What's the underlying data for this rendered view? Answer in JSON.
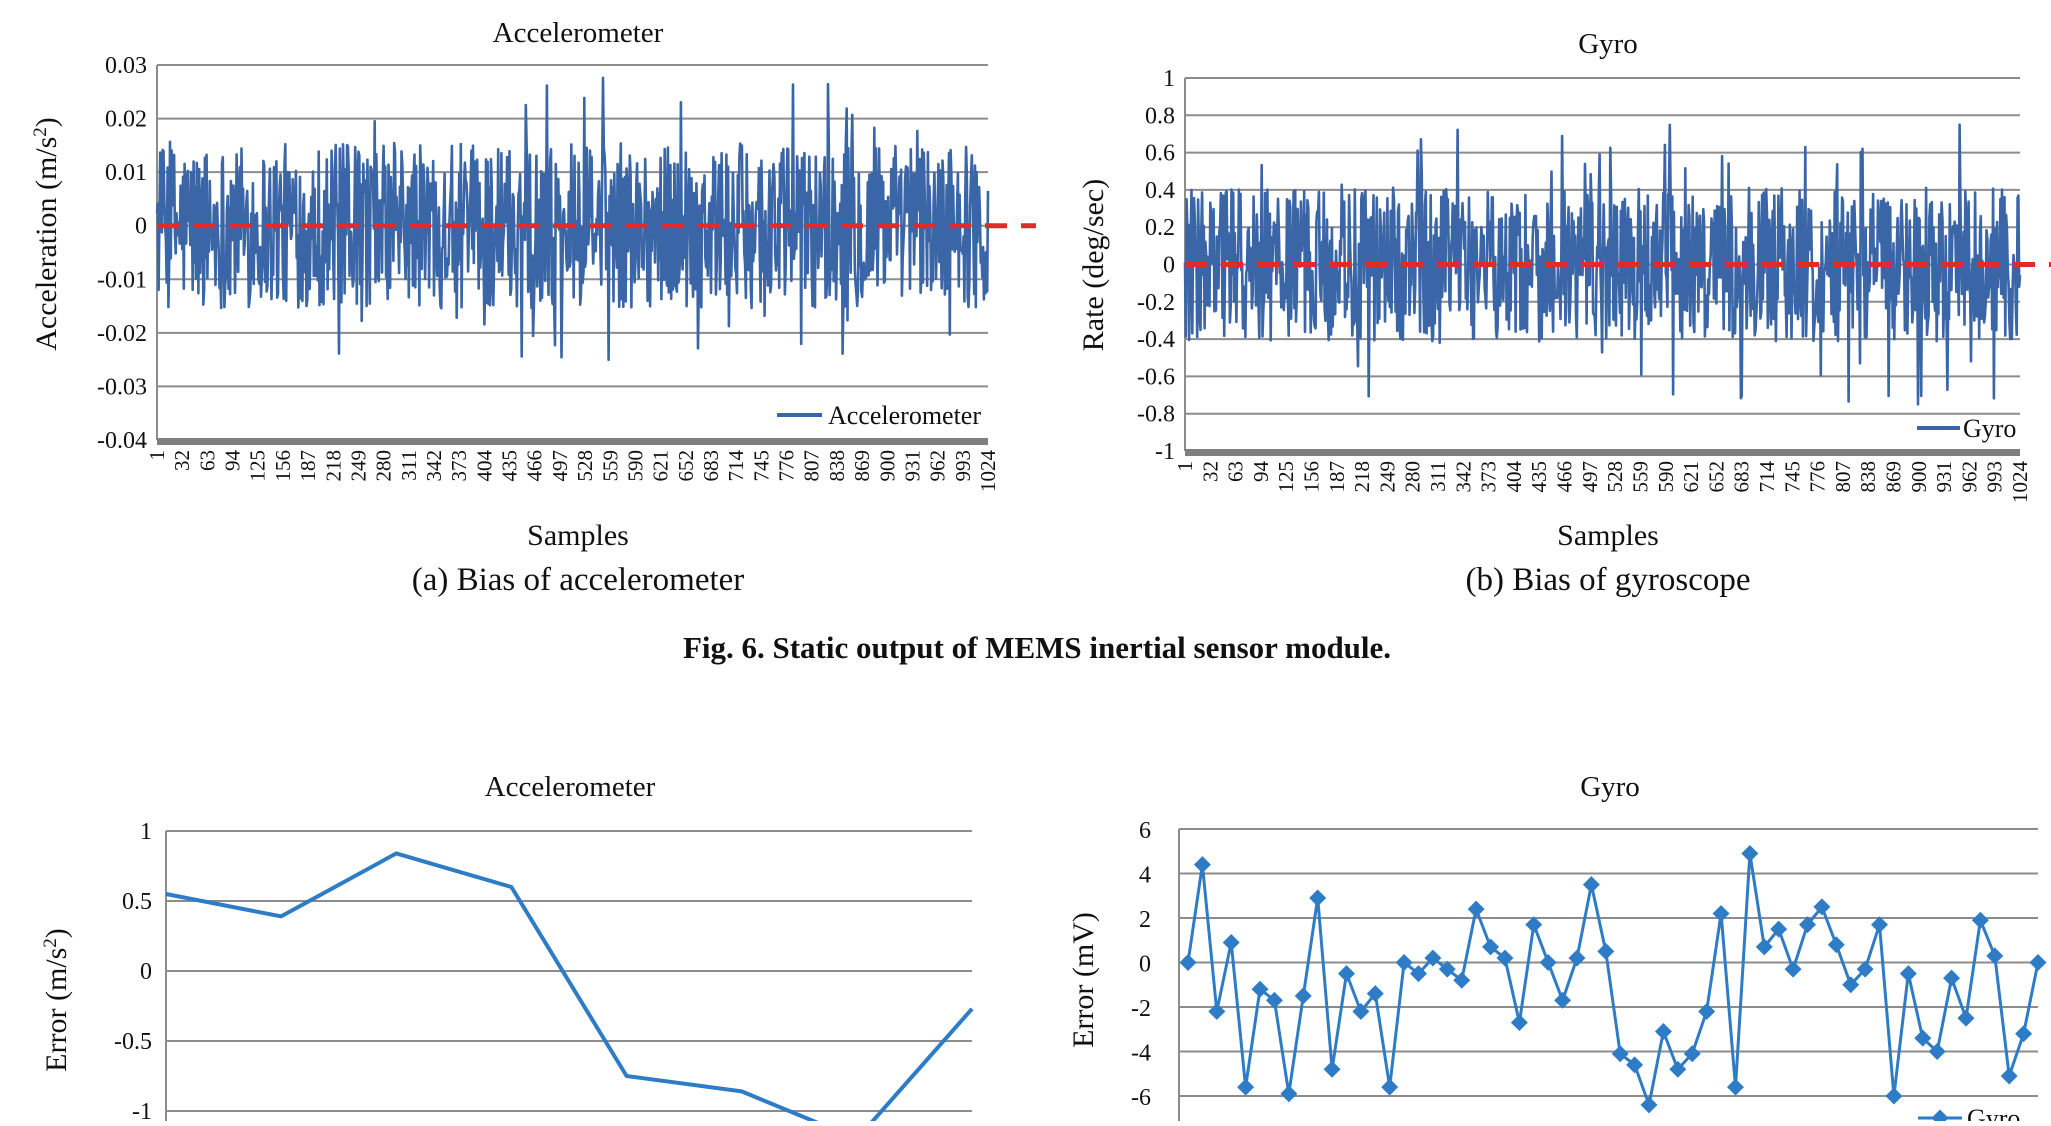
{
  "figure_caption": "Fig. 6.  Static output of MEMS inertial sensor module.",
  "colors": {
    "series": "#3a66a8",
    "series_bright": "#2e7cc6",
    "zero_line": "#e02b2b",
    "grid": "#8c8c8c"
  },
  "chart_data": [
    {
      "id": "acc-bias",
      "type": "line",
      "title": "Accelerometer",
      "xlabel": "Samples",
      "ylabel": "Acceleration (m/s²)",
      "ylabel_main": "Acceleration (m/s",
      "ylabel_sup": "2",
      "ylabel_end": ")",
      "subcaption": "(a) Bias of accelerometer",
      "legend": "Accelerometer",
      "legend_position": "bottom-right",
      "grid": true,
      "ylim": [
        -0.04,
        0.03
      ],
      "yticks": [
        0.03,
        0.02,
        0.01,
        0,
        -0.01,
        -0.02,
        -0.03,
        -0.04
      ],
      "ytick_labels": [
        "0.03",
        "0.02",
        "0.01",
        "0",
        "-0.01",
        "-0.02",
        "-0.03",
        "-0.04"
      ],
      "xticks": [
        "1",
        "32",
        "63",
        "94",
        "125",
        "156",
        "187",
        "218",
        "249",
        "280",
        "311",
        "342",
        "373",
        "404",
        "435",
        "466",
        "497",
        "528",
        "559",
        "590",
        "621",
        "652",
        "683",
        "714",
        "745",
        "776",
        "807",
        "838",
        "869",
        "900",
        "931",
        "962",
        "993",
        "1024"
      ],
      "n_samples": 1024,
      "noise_extent": 0.028,
      "reference_line": 0
    },
    {
      "id": "gyro-bias",
      "type": "line",
      "title": "Gyro",
      "xlabel": "Samples",
      "ylabel": "Rate (deg/sec)",
      "subcaption": "(b) Bias of gyroscope",
      "legend": "Gyro",
      "legend_position": "bottom-right",
      "grid": true,
      "ylim": [
        -1,
        1
      ],
      "yticks": [
        1,
        0.8,
        0.6,
        0.4,
        0.2,
        0,
        -0.2,
        -0.4,
        -0.6,
        -0.8,
        -1
      ],
      "ytick_labels": [
        "1",
        "0.8",
        "0.6",
        "0.4",
        "0.2",
        "0",
        "-0.2",
        "-0.4",
        "-0.6",
        "-0.8",
        "-1"
      ],
      "xticks": [
        "1",
        "32",
        "63",
        "94",
        "125",
        "156",
        "187",
        "218",
        "249",
        "280",
        "311",
        "342",
        "373",
        "404",
        "435",
        "466",
        "497",
        "528",
        "559",
        "590",
        "621",
        "652",
        "683",
        "714",
        "745",
        "776",
        "807",
        "838",
        "869",
        "900",
        "931",
        "962",
        "993",
        "1024"
      ],
      "n_samples": 1024,
      "noise_extent": 0.75,
      "reference_line": 0
    },
    {
      "id": "acc-error",
      "type": "line",
      "title": "Accelerometer",
      "ylabel": "Error (m/s²)",
      "ylabel_main": "Error (m/s",
      "ylabel_sup": "2",
      "ylabel_end": ")",
      "grid": true,
      "ylim": [
        -1.2,
        1
      ],
      "yticks": [
        1,
        0.5,
        0,
        -0.5,
        -1
      ],
      "ytick_labels": [
        "1",
        "0.5",
        "0",
        "-0.5",
        "-1"
      ],
      "x": [
        0,
        1,
        2,
        3,
        4,
        5,
        6,
        7
      ],
      "values": [
        0.55,
        0.39,
        0.84,
        0.6,
        -0.75,
        -0.86,
        -1.2,
        -0.27
      ]
    },
    {
      "id": "gyro-error",
      "type": "line",
      "title": "Gyro",
      "ylabel": "Error (mV)",
      "legend": "Gyro",
      "legend_position": "bottom-right",
      "grid": true,
      "ylim": [
        -7.5,
        6
      ],
      "yticks": [
        6,
        4,
        2,
        0,
        -2,
        -4,
        -6
      ],
      "ytick_labels": [
        "6",
        "4",
        "2",
        "0",
        "-2",
        "-4",
        "-6"
      ],
      "values": [
        0,
        4.4,
        -2.2,
        0.9,
        -5.6,
        -1.2,
        -1.7,
        -5.9,
        -1.5,
        2.9,
        -4.8,
        -0.5,
        -2.2,
        -1.4,
        -5.6,
        0,
        -0.5,
        0.2,
        -0.3,
        -0.8,
        2.4,
        0.7,
        0.2,
        -2.7,
        1.7,
        0,
        -1.7,
        0.2,
        3.5,
        0.5,
        -4.1,
        -4.6,
        -6.4,
        -3.1,
        -4.8,
        -4.1,
        -2.2,
        2.2,
        -5.6,
        4.9,
        0.7,
        1.5,
        -0.3,
        1.7,
        2.5,
        0.8,
        -1,
        -0.3,
        1.7,
        -6,
        -0.5,
        -3.4,
        -4,
        -0.7,
        -2.5,
        1.9,
        0.3,
        -5.1,
        -3.2,
        0
      ]
    }
  ]
}
